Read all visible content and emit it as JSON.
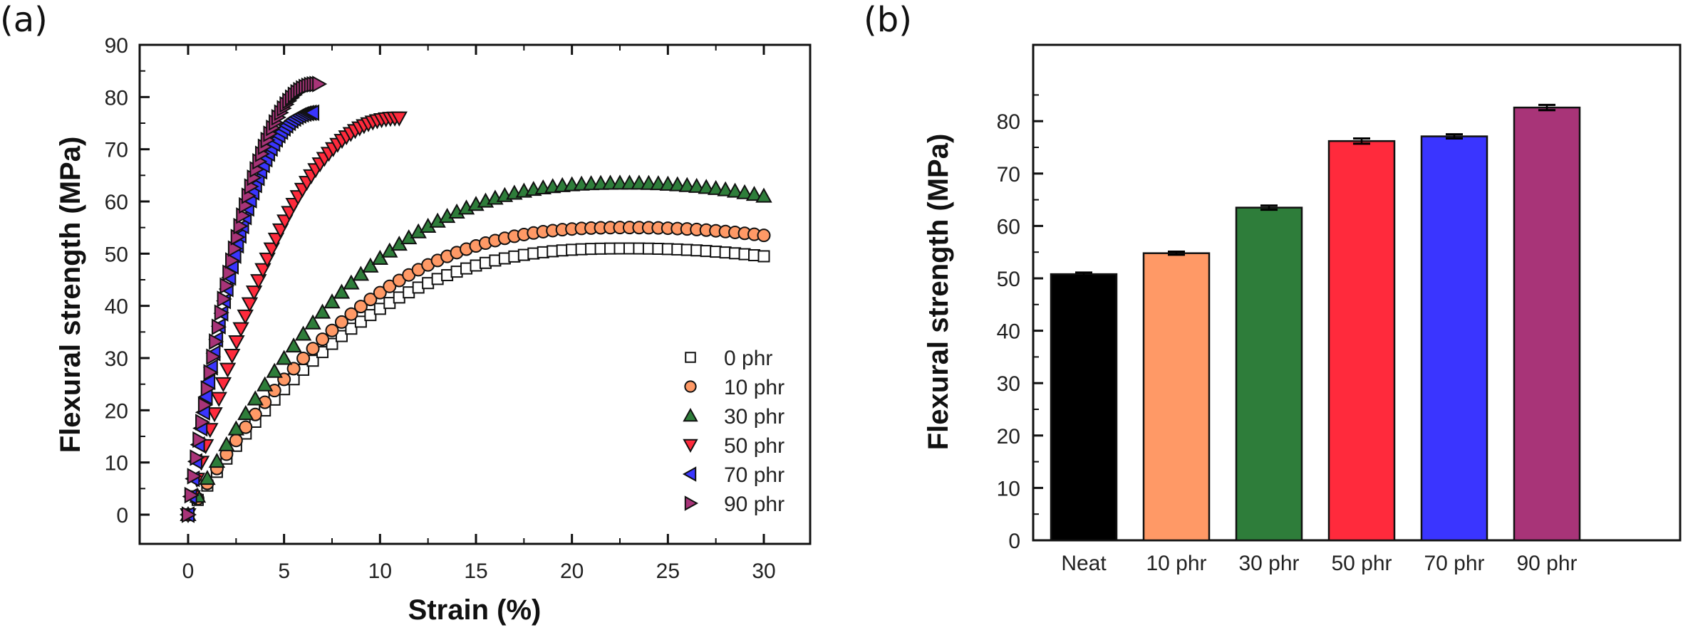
{
  "figure": {
    "panel_a_label": "(a)",
    "panel_b_label": "(b)"
  },
  "chart_data": [
    {
      "type": "scatter",
      "panel": "(a)",
      "title": "",
      "xlabel": "Strain (%)",
      "ylabel": "Flexural strength (MPa)",
      "xlim": [
        -2.5,
        32.5
      ],
      "ylim": [
        -5,
        90
      ],
      "xticks": [
        0,
        5,
        10,
        15,
        20,
        25,
        30
      ],
      "yticks": [
        0,
        10,
        20,
        30,
        40,
        50,
        60,
        70,
        80,
        90
      ],
      "grid": false,
      "legend_position": "bottom-right",
      "series": [
        {
          "name": "0 phr",
          "marker": "square",
          "color": "#ffffff",
          "max_strain": 30,
          "peak": 51,
          "peak_strain": 23,
          "end_value": 49.5
        },
        {
          "name": "10 phr",
          "marker": "circle",
          "color": "#ff9966",
          "max_strain": 30,
          "peak": 55,
          "peak_strain": 23,
          "end_value": 53.5
        },
        {
          "name": "30 phr",
          "marker": "triangle-up",
          "color": "#2e7d3a",
          "max_strain": 30,
          "peak": 63.5,
          "peak_strain": 23,
          "end_value": 61
        },
        {
          "name": "50 phr",
          "marker": "triangle-down",
          "color": "#ff2a3c",
          "max_strain": 11,
          "peak": 76,
          "peak_strain": 11,
          "end_value": 76
        },
        {
          "name": "70 phr",
          "marker": "triangle-left",
          "color": "#3a35ff",
          "max_strain": 6.5,
          "peak": 77,
          "peak_strain": 6.5,
          "end_value": 77
        },
        {
          "name": "90 phr",
          "marker": "triangle-right",
          "color": "#a83478",
          "max_strain": 6.8,
          "peak": 82.5,
          "peak_strain": 6.8,
          "end_value": 82.5
        }
      ]
    },
    {
      "type": "bar",
      "panel": "(b)",
      "title": "",
      "xlabel": "",
      "ylabel": "Flexural strength (MPa)",
      "ylim": [
        0,
        88
      ],
      "yticks": [
        0,
        10,
        20,
        30,
        40,
        50,
        60,
        70,
        80
      ],
      "grid": false,
      "categories": [
        "Neat",
        "10 phr",
        "30 phr",
        "50 phr",
        "70 phr",
        "90 phr"
      ],
      "values": [
        50.8,
        54.8,
        63.5,
        76.2,
        77.1,
        82.6
      ],
      "errors": [
        0.3,
        0.3,
        0.4,
        0.5,
        0.4,
        0.5
      ],
      "colors": [
        "#000000",
        "#ff9966",
        "#2e7d3a",
        "#ff2a3c",
        "#3a35ff",
        "#a83478"
      ]
    }
  ]
}
